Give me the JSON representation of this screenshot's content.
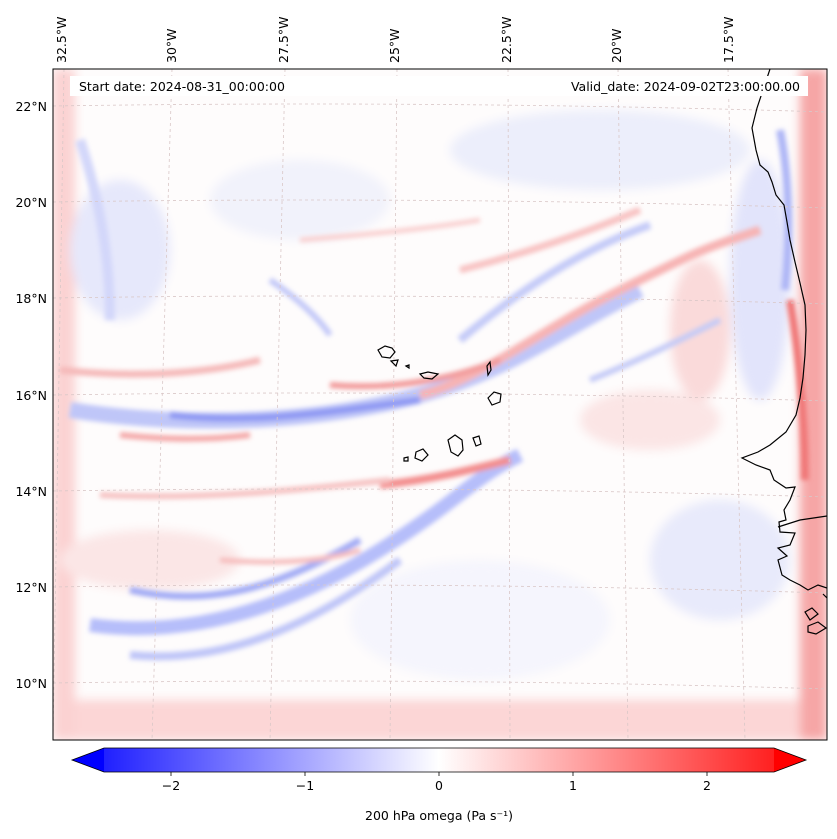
{
  "header": {
    "start_date": "Start date: 2024-08-31_00:00:00",
    "valid_date": "Valid_date: 2024-09-02T23:00:00.00"
  },
  "map": {
    "region": "Cape Verde / West African coast",
    "lon_labels": [
      "32.5°W",
      "30°W",
      "27.5°W",
      "25°W",
      "22.5°W",
      "20°W",
      "17.5°W"
    ],
    "lat_labels": [
      "22°N",
      "20°N",
      "18°N",
      "16°N",
      "14°N",
      "12°N",
      "10°N"
    ],
    "gridlines": true,
    "colormap": "bwr"
  },
  "colorbar": {
    "label": "200 hPa omega (Pa s⁻¹)",
    "ticks": [
      "−2",
      "−1",
      "0",
      "1",
      "2"
    ],
    "tick_values": [
      -2,
      -1,
      0,
      1,
      2
    ],
    "range": [
      -2.75,
      2.75
    ],
    "min_color": "#0000ff",
    "mid_color": "#ffffff",
    "max_color": "#ff0000",
    "extend": "both"
  }
}
